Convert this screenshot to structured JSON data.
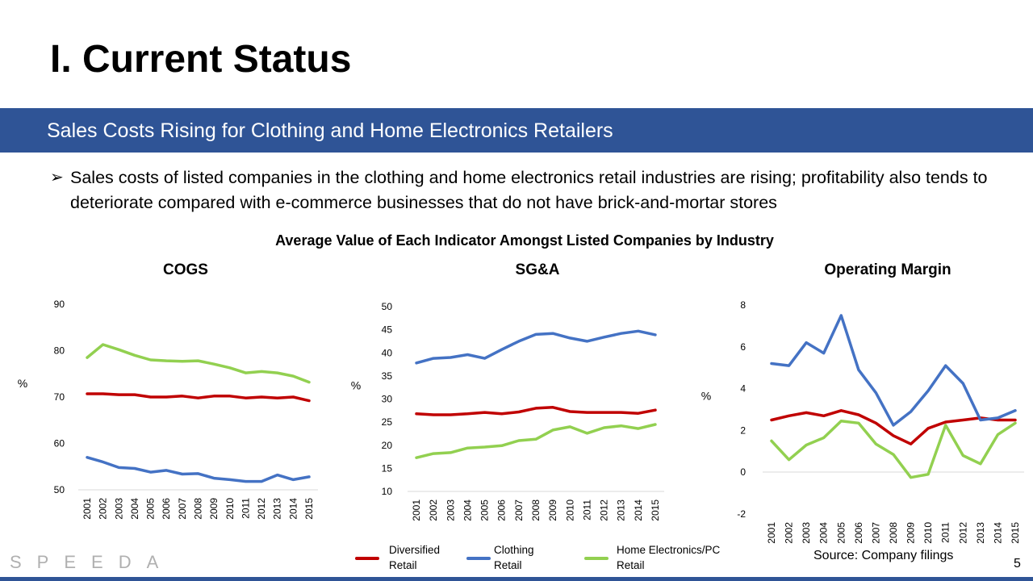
{
  "page": {
    "title": "I. Current Status",
    "banner": "Sales Costs Rising for Clothing and Home Electronics Retailers",
    "bullet_icon": "➢",
    "bullet": "Sales costs of listed companies in the clothing and home electronics retail industries are rising; profitability also tends to deteriorate compared with e-commerce businesses that do not have brick-and-mortar stores",
    "section_title": "Average Value of Each Indicator Amongst Listed Companies by Industry",
    "source": "Source: Company filings",
    "logo": "SPEEDA",
    "page_number": "5"
  },
  "legend": [
    {
      "label": "Diversified Retail",
      "color": "#c00000"
    },
    {
      "label": "Clothing Retail",
      "color": "#4472c4"
    },
    {
      "label": "Home Electronics/PC Retail",
      "color": "#92d050"
    }
  ],
  "chart_data": [
    {
      "type": "line",
      "title": "COGS",
      "ylabel": "%",
      "ylim": [
        50,
        90
      ],
      "yticks": [
        50,
        60,
        70,
        80,
        90
      ],
      "x": [
        "2001",
        "2002",
        "2003",
        "2004",
        "2005",
        "2006",
        "2007",
        "2008",
        "2009",
        "2010",
        "2011",
        "2012",
        "2013",
        "2014",
        "2015"
      ],
      "grid": false,
      "series": [
        {
          "name": "Diversified Retail",
          "color": "#c00000",
          "values": [
            70.7,
            70.7,
            70.5,
            70.5,
            70.0,
            70.0,
            70.2,
            69.8,
            70.2,
            70.2,
            69.8,
            70.0,
            69.8,
            70.0,
            69.2
          ]
        },
        {
          "name": "Clothing Retail",
          "color": "#4472c4",
          "values": [
            57.0,
            56.0,
            54.8,
            54.6,
            53.8,
            54.2,
            53.4,
            53.5,
            52.5,
            52.2,
            51.8,
            51.8,
            53.2,
            52.2,
            52.8
          ]
        },
        {
          "name": "Home Electronics/PC Retail",
          "color": "#92d050",
          "values": [
            78.5,
            81.3,
            80.2,
            79.0,
            78.0,
            77.8,
            77.7,
            77.8,
            77.1,
            76.3,
            75.2,
            75.5,
            75.2,
            74.5,
            73.2
          ]
        }
      ]
    },
    {
      "type": "line",
      "title": "SG&A",
      "ylabel": "%",
      "ylim": [
        10,
        50
      ],
      "yticks": [
        10,
        15,
        20,
        25,
        30,
        35,
        40,
        45,
        50
      ],
      "x": [
        "2001",
        "2002",
        "2003",
        "2004",
        "2005",
        "2006",
        "2007",
        "2008",
        "2009",
        "2010",
        "2011",
        "2012",
        "2013",
        "2014",
        "2015"
      ],
      "grid": false,
      "series": [
        {
          "name": "Diversified Retail",
          "color": "#c00000",
          "values": [
            26.8,
            26.6,
            26.6,
            26.8,
            27.1,
            26.8,
            27.2,
            28.0,
            28.2,
            27.3,
            27.1,
            27.1,
            27.1,
            26.9,
            27.6
          ]
        },
        {
          "name": "Clothing Retail",
          "color": "#4472c4",
          "values": [
            37.8,
            38.8,
            39.0,
            39.6,
            38.8,
            40.7,
            42.5,
            44.0,
            44.2,
            43.2,
            42.5,
            43.4,
            44.2,
            44.7,
            43.9
          ]
        },
        {
          "name": "Home Electronics/PC Retail",
          "color": "#92d050",
          "values": [
            17.3,
            18.2,
            18.4,
            19.4,
            19.6,
            19.9,
            21.0,
            21.3,
            23.3,
            24.0,
            22.6,
            23.8,
            24.2,
            23.6,
            24.5
          ]
        }
      ]
    },
    {
      "type": "line",
      "title": "Operating Margin",
      "ylabel": "%",
      "ylim": [
        -2,
        8
      ],
      "yticks": [
        -2,
        0,
        2,
        4,
        6,
        8
      ],
      "x": [
        "2001",
        "2002",
        "2003",
        "2004",
        "2005",
        "2006",
        "2007",
        "2008",
        "2009",
        "2010",
        "2011",
        "2012",
        "2013",
        "2014",
        "2015"
      ],
      "grid": false,
      "series": [
        {
          "name": "Diversified Retail",
          "color": "#c00000",
          "values": [
            2.5,
            2.7,
            2.85,
            2.7,
            2.95,
            2.75,
            2.35,
            1.75,
            1.35,
            2.1,
            2.4,
            2.5,
            2.6,
            2.5,
            2.5
          ]
        },
        {
          "name": "Clothing Retail",
          "color": "#4472c4",
          "values": [
            5.2,
            5.1,
            6.2,
            5.7,
            7.5,
            4.9,
            3.8,
            2.25,
            2.9,
            3.9,
            5.1,
            4.25,
            2.5,
            2.6,
            2.95
          ]
        },
        {
          "name": "Home Electronics/PC Retail",
          "color": "#92d050",
          "values": [
            1.5,
            0.6,
            1.3,
            1.65,
            2.45,
            2.35,
            1.35,
            0.85,
            -0.25,
            -0.1,
            2.25,
            0.8,
            0.4,
            1.8,
            2.35
          ]
        }
      ]
    }
  ]
}
